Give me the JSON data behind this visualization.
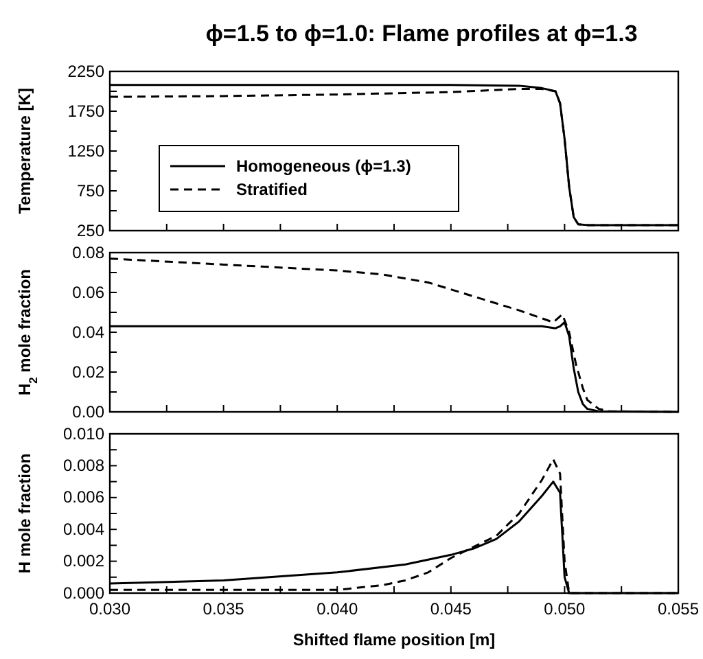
{
  "chart_data": [
    {
      "type": "line",
      "title": "ϕ=1.5 to ϕ=1.0: Flame profiles at ϕ=1.3",
      "ylabel": "Temperature [K]",
      "xlim": [
        0.03,
        0.055
      ],
      "xticks": [
        0.03,
        {
          "value": 0.0325,
          "label": null
        },
        0.035,
        {
          "value": 0.0375,
          "label": null
        },
        0.04,
        {
          "value": 0.0425,
          "label": null
        },
        0.045,
        {
          "value": 0.0475,
          "label": null
        },
        0.05,
        {
          "value": 0.0525,
          "label": null
        },
        0.055
      ],
      "ylim": [
        250,
        2250
      ],
      "yticks": [
        250,
        {
          "value": 500,
          "label": null
        },
        750,
        {
          "value": 1000,
          "label": null
        },
        1250,
        {
          "value": 1500,
          "label": null
        },
        1750,
        {
          "value": 2000,
          "label": null
        },
        2250
      ],
      "tick_labels": "y",
      "legend": "bottom left",
      "grid": false,
      "series": [
        {
          "name": "Homogeneous (ϕ=1.3)",
          "color": "#000000",
          "line_style": "solid",
          "x": [
            0.03,
            0.035,
            0.04,
            0.045,
            0.048,
            0.049,
            0.0496,
            0.0498,
            0.05,
            0.0502,
            0.0504,
            0.0506,
            0.051,
            0.055
          ],
          "values": [
            2080,
            2080,
            2080,
            2080,
            2070,
            2040,
            2000,
            1850,
            1400,
            800,
            420,
            330,
            320,
            320
          ]
        },
        {
          "name": "Stratified",
          "color": "#000000",
          "line_style": "dashed",
          "x": [
            0.03,
            0.035,
            0.04,
            0.045,
            0.048,
            0.049,
            0.0496,
            0.0498,
            0.05,
            0.0502,
            0.0504,
            0.0506,
            0.051,
            0.055
          ],
          "values": [
            1930,
            1940,
            1960,
            1990,
            2030,
            2030,
            2000,
            1850,
            1400,
            800,
            420,
            330,
            320,
            320
          ]
        }
      ]
    },
    {
      "type": "line",
      "ylabel": "H$_{2}$ mole fraction",
      "xlim": [
        0.03,
        0.055
      ],
      "xticks": [
        0.03,
        {
          "value": 0.0325,
          "label": null
        },
        0.035,
        {
          "value": 0.0375,
          "label": null
        },
        0.04,
        {
          "value": 0.0425,
          "label": null
        },
        0.045,
        {
          "value": 0.0475,
          "label": null
        },
        0.05,
        {
          "value": 0.0525,
          "label": null
        },
        0.055
      ],
      "ylim": [
        0,
        0.08
      ],
      "yticks": [
        {
          "value": 0,
          "label": "0.00"
        },
        {
          "value": 0.01,
          "label": null
        },
        {
          "value": 0.02,
          "label": "0.02"
        },
        {
          "value": 0.03,
          "label": null
        },
        {
          "value": 0.04,
          "label": "0.04"
        },
        {
          "value": 0.05,
          "label": null
        },
        {
          "value": 0.06,
          "label": "0.06"
        },
        {
          "value": 0.07,
          "label": null
        },
        {
          "value": 0.08,
          "label": "0.08"
        }
      ],
      "tick_labels": "y",
      "grid": false,
      "series": [
        {
          "color": "#000000",
          "line_style": "solid",
          "x": [
            0.03,
            0.035,
            0.04,
            0.045,
            0.049,
            0.0496,
            0.0498,
            0.05,
            0.0502,
            0.0504,
            0.0506,
            0.0508,
            0.051,
            0.0515,
            0.055
          ],
          "values": [
            0.043,
            0.043,
            0.043,
            0.043,
            0.043,
            0.042,
            0.043,
            0.045,
            0.038,
            0.022,
            0.01,
            0.004,
            0.0015,
            0.0003,
            0
          ]
        },
        {
          "color": "#000000",
          "line_style": "dashed",
          "x": [
            0.03,
            0.035,
            0.04,
            0.042,
            0.044,
            0.046,
            0.048,
            0.0495,
            0.0499,
            0.0502,
            0.0505,
            0.0508,
            0.051,
            0.0515,
            0.052,
            0.055
          ],
          "values": [
            0.077,
            0.074,
            0.071,
            0.069,
            0.065,
            0.058,
            0.051,
            0.045,
            0.049,
            0.04,
            0.024,
            0.012,
            0.006,
            0.0015,
            0.0003,
            0
          ]
        }
      ]
    },
    {
      "type": "line",
      "ylabel": "H mole fraction",
      "xlabel": "Shifted flame position [m]",
      "xlim": [
        0.03,
        0.055
      ],
      "xticks": [
        {
          "value": 0.03,
          "label": "0.030"
        },
        {
          "value": 0.0325,
          "label": null
        },
        {
          "value": 0.035,
          "label": "0.035"
        },
        {
          "value": 0.0375,
          "label": null
        },
        {
          "value": 0.04,
          "label": "0.040"
        },
        {
          "value": 0.0425,
          "label": null
        },
        {
          "value": 0.045,
          "label": "0.045"
        },
        {
          "value": 0.0475,
          "label": null
        },
        {
          "value": 0.05,
          "label": "0.050"
        },
        {
          "value": 0.0525,
          "label": null
        },
        {
          "value": 0.055,
          "label": "0.055"
        }
      ],
      "ylim": [
        0,
        0.01
      ],
      "yticks": [
        {
          "value": 0,
          "label": "0.000"
        },
        {
          "value": 0.001,
          "label": null
        },
        {
          "value": 0.002,
          "label": "0.002"
        },
        {
          "value": 0.003,
          "label": null
        },
        {
          "value": 0.004,
          "label": "0.004"
        },
        {
          "value": 0.005,
          "label": null
        },
        {
          "value": 0.006,
          "label": "0.006"
        },
        {
          "value": 0.007,
          "label": null
        },
        {
          "value": 0.008,
          "label": "0.008"
        },
        {
          "value": 0.009,
          "label": null
        },
        {
          "value": 0.01,
          "label": "0.010"
        }
      ],
      "grid": false,
      "series": [
        {
          "color": "#000000",
          "line_style": "solid",
          "x": [
            0.03,
            0.035,
            0.04,
            0.043,
            0.045,
            0.046,
            0.047,
            0.048,
            0.049,
            0.0495,
            0.0498,
            0.05,
            0.0502,
            0.055
          ],
          "values": [
            0.0006,
            0.0008,
            0.0013,
            0.0018,
            0.0024,
            0.0028,
            0.0034,
            0.0045,
            0.0061,
            0.007,
            0.0063,
            0.001,
            0,
            0
          ]
        },
        {
          "color": "#000000",
          "line_style": "dashed",
          "x": [
            0.03,
            0.035,
            0.04,
            0.042,
            0.043,
            0.044,
            0.045,
            0.046,
            0.047,
            0.048,
            0.049,
            0.0495,
            0.0498,
            0.05,
            0.0502,
            0.055
          ],
          "values": [
            0.0002,
            0.0002,
            0.0002,
            0.0005,
            0.0008,
            0.0013,
            0.0022,
            0.0029,
            0.0036,
            0.005,
            0.0071,
            0.0084,
            0.0075,
            0.002,
            0,
            0
          ]
        }
      ]
    }
  ]
}
